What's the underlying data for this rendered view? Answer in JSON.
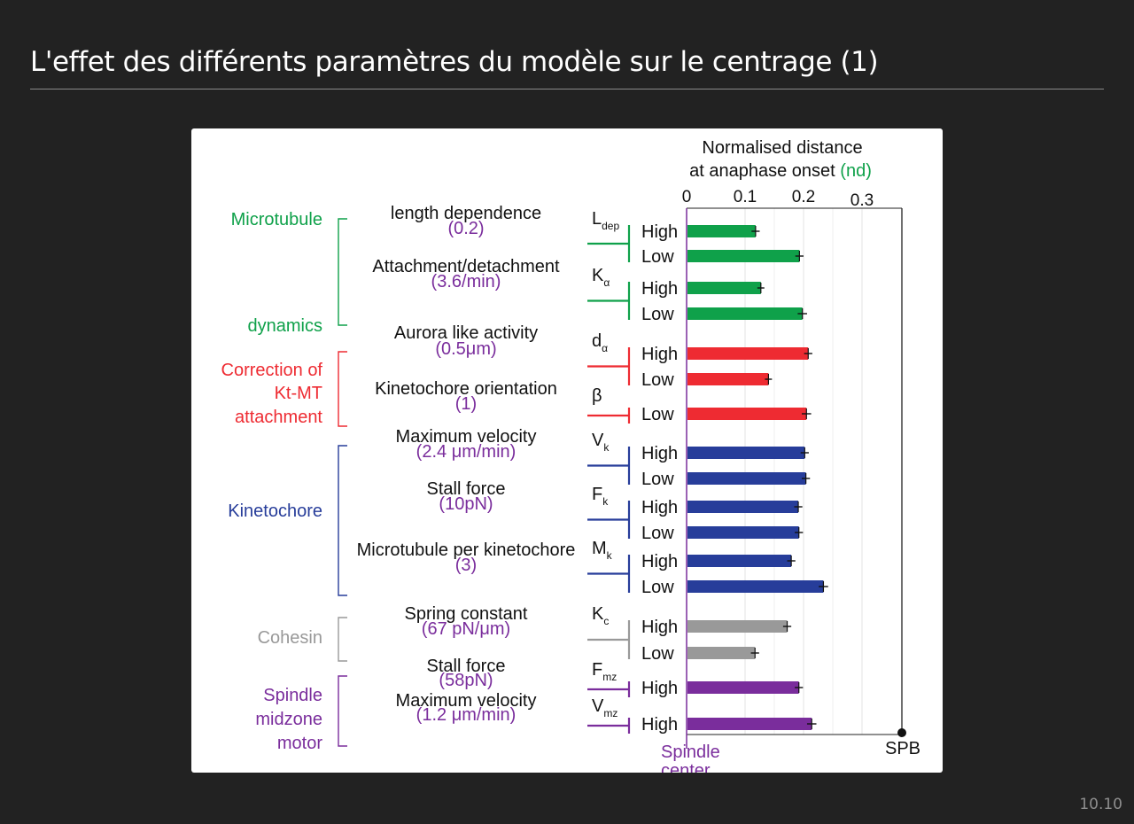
{
  "slide": {
    "title": "L'effet des différents paramètres du modèle sur le centrage (1)",
    "number": "10.10"
  },
  "colors": {
    "microtubule_dynamics": "#0fa14a",
    "correction": "#ee2b32",
    "kinetochore": "#273d9a",
    "cohesin": "#999999",
    "spindle_motor": "#7a2d9c",
    "default_value": "#7a2d9c",
    "axis_nd": "#0fa14a",
    "slide_background": "#222222",
    "panel_background": "#ffffff"
  },
  "chart_data": {
    "type": "bar",
    "orientation": "horizontal",
    "title_line1": "Normalised distance",
    "title_line2": "at anaphase onset",
    "title_unit": "(nd)",
    "xlim": [
      0,
      0.37
    ],
    "xticks": [
      0,
      0.1,
      0.2,
      0.3
    ],
    "xtick_labels": [
      "0",
      "0.1",
      "0.2",
      "0.3"
    ],
    "grid": true,
    "error_bars": true,
    "left_end_label_line1": "Spindle",
    "left_end_label_line2": "center",
    "right_end_label": "SPB",
    "groups": [
      {
        "name_lines": [
          "Microtubule",
          "dynamics"
        ],
        "color_key": "microtubule_dynamics",
        "params": [
          {
            "name": "length dependence",
            "default": "(0.2)",
            "symbol": "L",
            "sub": "dep",
            "bars": [
              {
                "level": "High",
                "value": 0.118,
                "error": 0.007
              },
              {
                "level": "Low",
                "value": 0.193,
                "error": 0.007
              }
            ]
          },
          {
            "name": "Attachment/detachment",
            "default": "(3.6/min)",
            "symbol": "K",
            "sub": "α",
            "bars": [
              {
                "level": "High",
                "value": 0.127,
                "error": 0.006
              },
              {
                "level": "Low",
                "value": 0.198,
                "error": 0.008
              }
            ]
          }
        ]
      },
      {
        "name_lines": [
          "Correction of",
          "Kt-MT",
          "attachment"
        ],
        "color_key": "correction",
        "params": [
          {
            "name": "Aurora like activity",
            "default": "(0.5μm)",
            "symbol": "d",
            "sub": "α",
            "bars": [
              {
                "level": "High",
                "value": 0.208,
                "error": 0.007
              },
              {
                "level": "Low",
                "value": 0.14,
                "error": 0.006
              }
            ]
          },
          {
            "name": "Kinetochore orientation",
            "default": "(1)",
            "symbol": "β",
            "sub": "",
            "bars": [
              {
                "level": "Low",
                "value": 0.205,
                "error": 0.008
              }
            ]
          }
        ]
      },
      {
        "name_lines": [
          "Kinetochore"
        ],
        "color_key": "kinetochore",
        "params": [
          {
            "name": "Maximum velocity",
            "default": "(2.4 μm/min)",
            "symbol": "V",
            "sub": "k",
            "bars": [
              {
                "level": "High",
                "value": 0.202,
                "error": 0.007
              },
              {
                "level": "Low",
                "value": 0.204,
                "error": 0.007
              }
            ]
          },
          {
            "name": "Stall force",
            "default": "(10pN)",
            "symbol": "F",
            "sub": "k",
            "bars": [
              {
                "level": "High",
                "value": 0.191,
                "error": 0.007
              },
              {
                "level": "Low",
                "value": 0.192,
                "error": 0.007
              }
            ]
          },
          {
            "name": "Microtubule per kinetochore",
            "default": "(3)",
            "symbol": "M",
            "sub": "k",
            "bars": [
              {
                "level": "High",
                "value": 0.179,
                "error": 0.007
              },
              {
                "level": "Low",
                "value": 0.234,
                "error": 0.008
              }
            ]
          }
        ]
      },
      {
        "name_lines": [
          "Cohesin"
        ],
        "color_key": "cohesin",
        "params": [
          {
            "name": "Spring constant",
            "default": "(67 pN/μm)",
            "symbol": "K",
            "sub": "c",
            "bars": [
              {
                "level": "High",
                "value": 0.172,
                "error": 0.007
              },
              {
                "level": "Low",
                "value": 0.117,
                "error": 0.007
              }
            ]
          }
        ]
      },
      {
        "name_lines": [
          "Spindle",
          "midzone",
          "motor"
        ],
        "color_key": "spindle_motor",
        "params": [
          {
            "name": "Stall force",
            "default": "(58pN)",
            "symbol": "F",
            "sub": "mz",
            "bars": [
              {
                "level": "High",
                "value": 0.192,
                "error": 0.007
              }
            ]
          },
          {
            "name": "Maximum velocity",
            "default": "(1.2 μm/min)",
            "symbol": "V",
            "sub": "mz",
            "bars": [
              {
                "level": "High",
                "value": 0.214,
                "error": 0.008
              }
            ]
          }
        ]
      }
    ]
  }
}
